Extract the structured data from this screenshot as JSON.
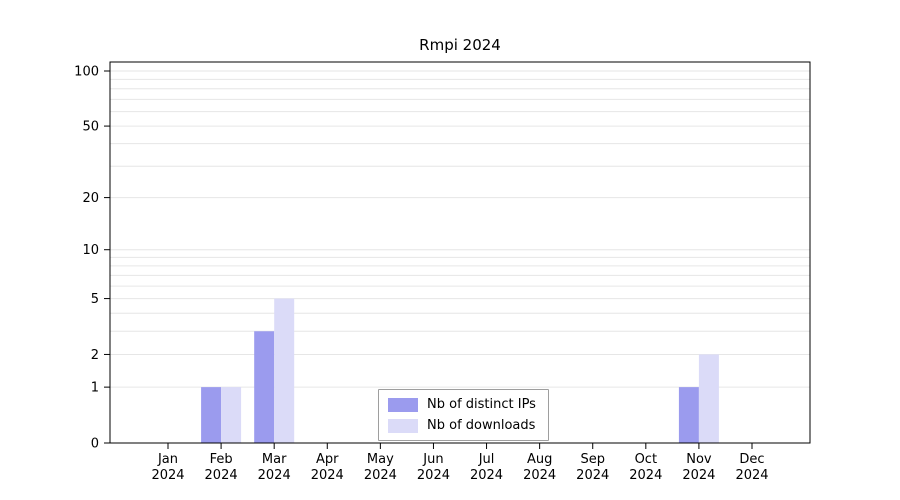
{
  "title": "Rmpi 2024",
  "chart_data": {
    "type": "bar",
    "title": "Rmpi 2024",
    "scale": "log1p",
    "grid": true,
    "legend_position": "bottom-center",
    "categories": [
      "Jan",
      "Feb",
      "Mar",
      "Apr",
      "May",
      "Jun",
      "Jul",
      "Aug",
      "Sep",
      "Oct",
      "Nov",
      "Dec"
    ],
    "x_tick_year": "2024",
    "series": [
      {
        "name": "Nb of distinct IPs",
        "color": "#9b9bee",
        "values": [
          0,
          1,
          3,
          0,
          0,
          0,
          0,
          0,
          0,
          0,
          1,
          0
        ]
      },
      {
        "name": "Nb of downloads",
        "color": "#dbdbf8",
        "values": [
          0,
          1,
          5,
          0,
          0,
          0,
          0,
          0,
          0,
          0,
          2,
          0
        ]
      }
    ],
    "y_ticks": [
      0,
      1,
      2,
      5,
      10,
      20,
      50,
      100
    ],
    "minor_gridlines": [
      1,
      2,
      3,
      4,
      5,
      6,
      7,
      8,
      9,
      10,
      20,
      30,
      40,
      50,
      60,
      70,
      80,
      90,
      100
    ],
    "ylim": [
      0,
      100
    ],
    "colors": {
      "gridline": "#e6e6e6",
      "axis": "#000000",
      "tick_label": "#000000"
    }
  }
}
